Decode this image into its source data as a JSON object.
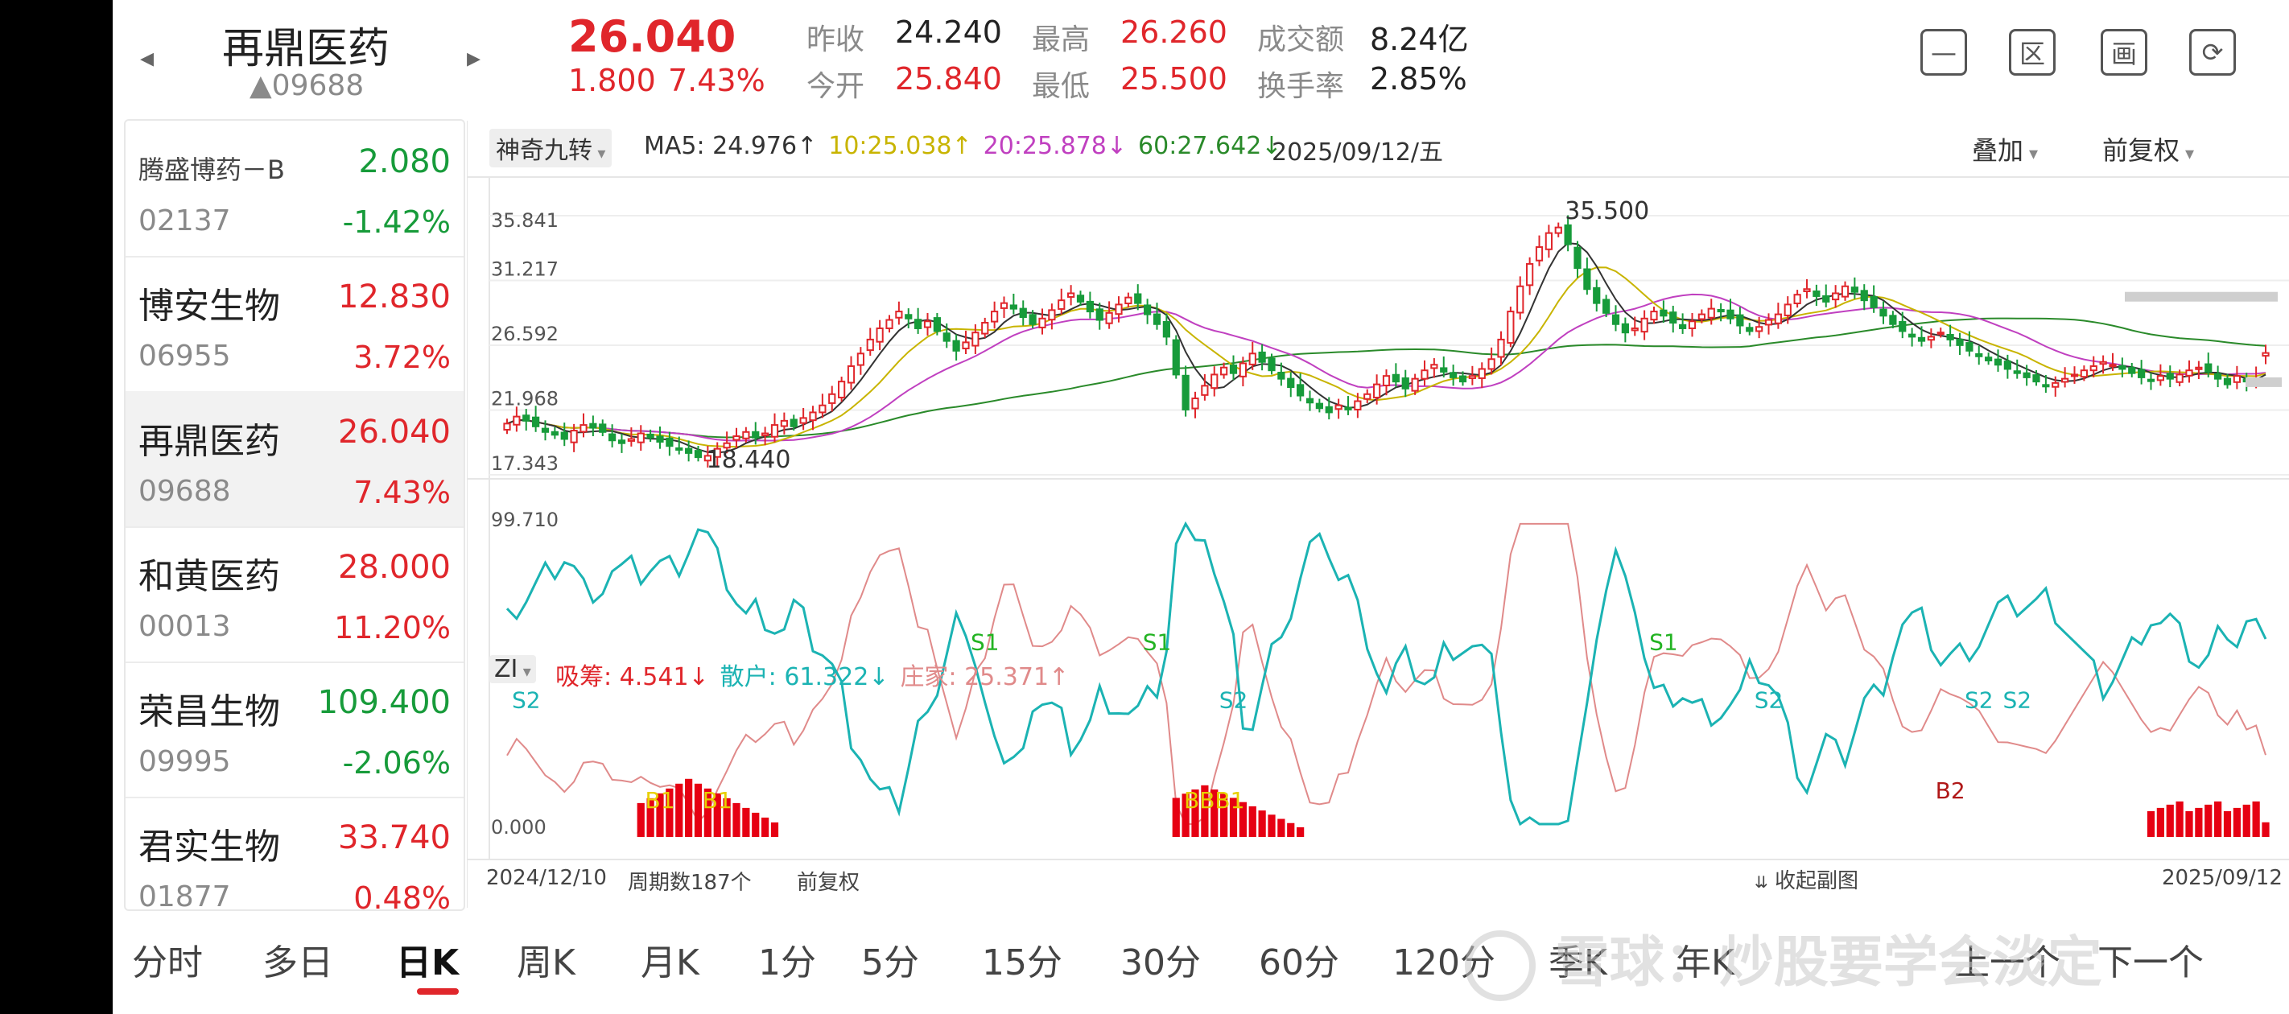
{
  "header": {
    "name": "再鼎医药",
    "code": "▲09688",
    "price": "26.040",
    "change": "1.800",
    "change_pct": "7.43%",
    "fields": [
      {
        "label": "昨收",
        "value": "24.240",
        "color": "#222222"
      },
      {
        "label": "今开",
        "value": "25.840",
        "color": "#e0262b"
      },
      {
        "label": "最高",
        "value": "26.260",
        "color": "#e0262b"
      },
      {
        "label": "最低",
        "value": "25.500",
        "color": "#e0262b"
      },
      {
        "label": "成交额",
        "value": "8.24亿",
        "color": "#222222"
      },
      {
        "label": "换手率",
        "value": "2.85%",
        "color": "#222222"
      }
    ],
    "prev_arrow": "◂",
    "next_arrow": "▸",
    "tools": [
      "minus-square-icon",
      "region-icon",
      "canvas-icon",
      "rotate-screen-icon"
    ],
    "tool_glyphs": [
      "—",
      "区",
      "画",
      "⟳"
    ]
  },
  "sidebar": {
    "items": [
      {
        "name": "腾盛博药－B",
        "code": "02137",
        "price": "2.080",
        "pct": "-1.42%",
        "up": false
      },
      {
        "name": "博安生物",
        "code": "06955",
        "price": "12.830",
        "pct": "3.72%",
        "up": true
      },
      {
        "name": "再鼎医药",
        "code": "09688",
        "price": "26.040",
        "pct": "7.43%",
        "up": true
      },
      {
        "name": "和黄医药",
        "code": "00013",
        "price": "28.000",
        "pct": "11.20%",
        "up": true
      },
      {
        "name": "荣昌生物",
        "code": "09995",
        "price": "109.400",
        "pct": "-2.06%",
        "up": false
      },
      {
        "name": "君实生物",
        "code": "01877",
        "price": "33.740",
        "pct": "0.48%",
        "up": true
      }
    ]
  },
  "main_chart": {
    "indicator_select": "神奇九转",
    "ma_labels": [
      {
        "text": "MA5: 24.976↑",
        "color": "#333333"
      },
      {
        "text": "10:25.038↑",
        "color": "#c8b400"
      },
      {
        "text": "20:25.878↓",
        "color": "#c040c0"
      },
      {
        "text": "60:27.642↓",
        "color": "#2a8a2a"
      }
    ],
    "date_label": "2025/09/12/五",
    "overlay_label": "叠加",
    "adjust_label": "前复权",
    "y_ticks": [
      "35.841",
      "31.217",
      "26.592",
      "21.968",
      "17.343"
    ],
    "high_annot": "35.500",
    "low_annot": "18.440"
  },
  "sub_chart": {
    "indicator_select": "ZI",
    "labels": [
      {
        "text": "吸筹: 4.541↓",
        "color": "#e0262b"
      },
      {
        "text": "散户: 61.322↓",
        "color": "#1bb3b3"
      },
      {
        "text": "庄家: 25.371↑",
        "color": "#e08a8a"
      }
    ],
    "y_top": "99.710",
    "y_bottom": "0.000",
    "signals": [
      "S2",
      "S1",
      "S1",
      "S2",
      "S1",
      "S2",
      "B2",
      "S2",
      "S2",
      "B1",
      "B1",
      "BBB1"
    ]
  },
  "footer": {
    "start_date": "2024/12/10",
    "period_count": "周期数187个",
    "adjust": "前复权",
    "collapse": "收起副图",
    "collapse_icon": "⇊",
    "end_date": "2025/09/12"
  },
  "tabs": [
    "分时",
    "多日",
    "日K",
    "周K",
    "月K",
    "1分",
    "5分",
    "15分",
    "30分",
    "60分",
    "120分",
    "季K",
    "年K",
    "上一个",
    "下一个"
  ],
  "watermark": "雪球：炒股要学会淡定",
  "colors": {
    "up": "#e0262b",
    "down": "#179b3a",
    "ma5": "#333333",
    "ma10": "#c8b400",
    "ma20": "#c040c0",
    "ma60": "#2a8a2a",
    "retail": "#1bb3b3",
    "dealer": "#e08a8a",
    "accum": "#e60012"
  },
  "chart_data": {
    "type": "candlestick",
    "title": "",
    "x_range": [
      "2024/12/10",
      "2025/09/12"
    ],
    "ylim": [
      17.343,
      35.841
    ],
    "y_ticks": [
      35.841,
      31.217,
      26.592,
      21.968,
      17.343
    ],
    "period_count": 187,
    "last": {
      "date": "2025/09/12",
      "open": 25.84,
      "high": 26.26,
      "low": 25.5,
      "close": 26.04,
      "prev_close": 24.24
    },
    "annotated_high": 35.5,
    "annotated_low": 18.44,
    "close_approx": [
      21.0,
      21.5,
      21.2,
      20.8,
      20.4,
      20.2,
      19.9,
      20.5,
      20.9,
      20.7,
      20.4,
      19.8,
      19.6,
      19.9,
      20.3,
      20.0,
      19.7,
      19.4,
      19.2,
      18.9,
      18.6,
      18.7,
      19.2,
      19.6,
      20.1,
      20.4,
      20.0,
      20.3,
      20.9,
      21.2,
      20.8,
      21.4,
      21.8,
      22.3,
      23.1,
      24.0,
      25.1,
      26.0,
      27.0,
      27.8,
      28.4,
      29.0,
      28.5,
      27.8,
      28.3,
      27.6,
      26.9,
      26.2,
      26.8,
      27.5,
      28.2,
      29.0,
      29.6,
      29.2,
      28.6,
      28.1,
      28.5,
      29.1,
      29.8,
      30.3,
      29.7,
      29.0,
      28.4,
      28.9,
      29.5,
      30.0,
      29.6,
      28.8,
      28.1,
      27.2,
      24.5,
      22.0,
      22.8,
      23.7,
      24.5,
      25.0,
      24.6,
      25.3,
      26.0,
      25.4,
      24.8,
      24.2,
      23.6,
      23.0,
      22.5,
      22.1,
      21.8,
      22.3,
      22.0,
      22.6,
      23.1,
      23.8,
      24.4,
      24.0,
      23.5,
      24.2,
      24.8,
      25.2,
      24.7,
      24.3,
      24.0,
      24.4,
      24.9,
      25.6,
      27.0,
      29.0,
      30.8,
      32.4,
      33.6,
      34.6,
      35.0,
      33.8,
      32.1,
      30.6,
      29.6,
      28.9,
      28.1,
      27.5,
      27.8,
      28.5,
      29.0,
      28.7,
      28.2,
      27.8,
      28.3,
      28.8,
      29.2,
      29.0,
      28.5,
      28.0,
      27.6,
      27.9,
      28.4,
      28.8,
      29.5,
      30.2,
      30.6,
      30.1,
      29.7,
      30.3,
      30.8,
      30.4,
      29.8,
      29.3,
      28.7,
      28.1,
      27.6,
      27.2,
      26.9,
      27.2,
      27.5,
      27.0,
      26.6,
      26.2,
      25.8,
      25.5,
      25.2,
      24.9,
      24.6,
      24.3,
      24.0,
      23.7,
      23.9,
      24.2,
      24.5,
      24.8,
      25.1,
      25.4,
      25.2,
      24.9,
      24.6,
      24.3,
      24.1,
      24.4,
      24.2,
      24.5,
      24.8,
      25.0,
      24.7,
      24.2,
      23.8,
      24.4,
      24.0,
      24.24,
      26.04
    ],
    "ma60_approx_end": 27.642,
    "ma20_approx_end": 25.878,
    "ma10_approx_end": 25.038,
    "ma5_approx_end": 24.976,
    "sub_indicator": {
      "name": "ZI",
      "ylim": [
        0,
        99.71
      ],
      "accum_last": 4.541,
      "retail_last": 61.322,
      "dealer_last": 25.371
    }
  }
}
